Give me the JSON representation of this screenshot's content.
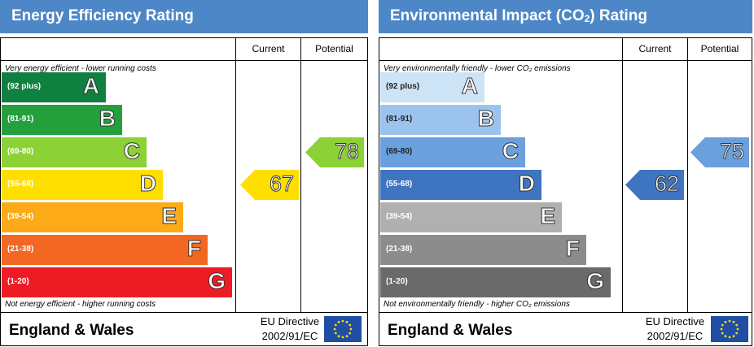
{
  "chart_data": [
    {
      "type": "bar",
      "title": "Energy Efficiency Rating",
      "columns": [
        "Current",
        "Potential"
      ],
      "top_note": "Very energy efficient - lower running costs",
      "bottom_note": "Not energy efficient - higher running costs",
      "bands": [
        {
          "range": "(92 plus)",
          "letter": "A",
          "color": "#108040"
        },
        {
          "range": "(81-91)",
          "letter": "B",
          "color": "#23a03c"
        },
        {
          "range": "(69-80)",
          "letter": "C",
          "color": "#8cd136"
        },
        {
          "range": "(55-68)",
          "letter": "D",
          "color": "#ffdf00"
        },
        {
          "range": "(39-54)",
          "letter": "E",
          "color": "#fcaa18"
        },
        {
          "range": "(21-38)",
          "letter": "F",
          "color": "#f26722"
        },
        {
          "range": "(1-20)",
          "letter": "G",
          "color": "#ed1c24"
        }
      ],
      "current": {
        "value": 67,
        "band": "D",
        "color": "#ffdf00"
      },
      "potential": {
        "value": 78,
        "band": "C",
        "color": "#8cd136"
      },
      "footer": "England & Wales",
      "directive_line1": "EU Directive",
      "directive_line2": "2002/91/EC"
    },
    {
      "type": "bar",
      "title_main": "Environmental Impact (CO",
      "title_sub": "2",
      "title_end": ") Rating",
      "columns": [
        "Current",
        "Potential"
      ],
      "top_note": "Very environmentally friendly - lower CO₂ emissions",
      "bottom_note": "Not environmentally friendly - higher CO₂ emissions",
      "bands": [
        {
          "range": "(92 plus)",
          "letter": "A",
          "color": "#cde3f6"
        },
        {
          "range": "(81-91)",
          "letter": "B",
          "color": "#9cc3ee"
        },
        {
          "range": "(69-80)",
          "letter": "C",
          "color": "#6aa0dd"
        },
        {
          "range": "(55-68)",
          "letter": "D",
          "color": "#3f74c0"
        },
        {
          "range": "(39-54)",
          "letter": "E",
          "color": "#b0b0b0"
        },
        {
          "range": "(21-38)",
          "letter": "F",
          "color": "#8c8c8c"
        },
        {
          "range": "(1-20)",
          "letter": "G",
          "color": "#6a6a6a"
        }
      ],
      "current": {
        "value": 62,
        "band": "D",
        "color": "#3f74c0"
      },
      "potential": {
        "value": 75,
        "band": "C",
        "color": "#6aa0dd"
      },
      "footer": "England & Wales",
      "directive_line1": "EU Directive",
      "directive_line2": "2002/91/EC"
    }
  ]
}
